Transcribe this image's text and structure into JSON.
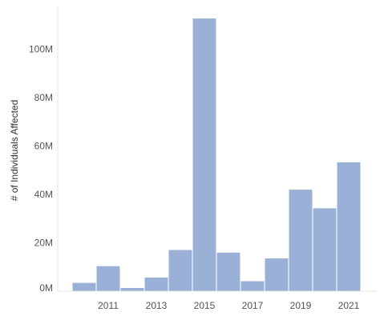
{
  "chart_data": {
    "type": "bar",
    "ylabel": "# of Individuals Affected",
    "xlabel": "",
    "title": "",
    "categories": [
      "2010",
      "2011",
      "2012",
      "2013",
      "2014",
      "2015",
      "2016",
      "2017",
      "2018",
      "2019",
      "2020",
      "2021"
    ],
    "values": [
      3600000,
      10500000,
      1500000,
      5800000,
      17200000,
      112800000,
      16100000,
      4300000,
      13700000,
      42100000,
      34400000,
      53400000
    ],
    "x_tick_labels": [
      "2011",
      "2013",
      "2015",
      "2017",
      "2019",
      "2021"
    ],
    "y_ticks": [
      0,
      20000000,
      40000000,
      60000000,
      80000000,
      100000000
    ],
    "y_tick_labels": [
      "0M",
      "20M",
      "40M",
      "60M",
      "80M",
      "100M"
    ],
    "ylim": [
      0,
      115000000
    ],
    "grid": false,
    "bar_color": "#9bb0d7"
  }
}
